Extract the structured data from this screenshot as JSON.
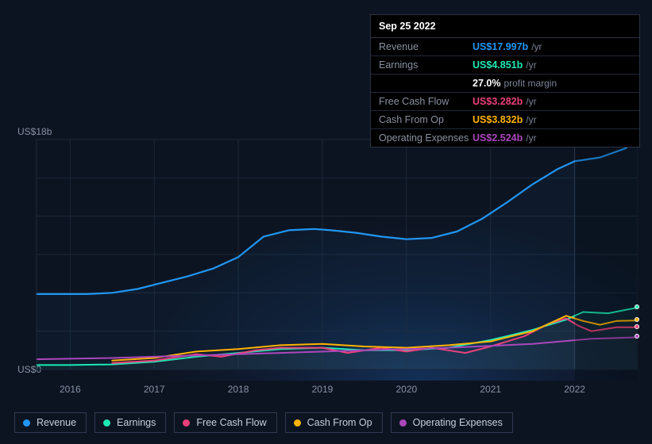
{
  "chart": {
    "type": "line",
    "x_axis": {
      "type": "time",
      "years": [
        "2016",
        "2017",
        "2018",
        "2019",
        "2020",
        "2021",
        "2022"
      ],
      "min": 2015.6,
      "max": 2022.75
    },
    "y_axis": {
      "min": 0,
      "max": 18,
      "ticks": [
        0,
        18
      ],
      "tick_labels": [
        "US$0",
        "US$18b"
      ],
      "label_color": "#8892a6",
      "label_fontsize": 12
    },
    "background_color": "#0d1421",
    "grid_color": "#1b2738",
    "vertical_divider_at": 2022.0,
    "shaded_region": {
      "from": 2022.0,
      "to": 2022.75
    },
    "series": [
      {
        "id": "revenue",
        "name": "Revenue",
        "color": "#2196f3",
        "line_width": 2.2,
        "fill_opacity": 0.05,
        "points": [
          [
            2015.6,
            5.9
          ],
          [
            2015.9,
            5.9
          ],
          [
            2016.2,
            5.9
          ],
          [
            2016.5,
            6.0
          ],
          [
            2016.8,
            6.3
          ],
          [
            2017.1,
            6.8
          ],
          [
            2017.4,
            7.3
          ],
          [
            2017.7,
            7.9
          ],
          [
            2018.0,
            8.8
          ],
          [
            2018.3,
            10.4
          ],
          [
            2018.6,
            10.9
          ],
          [
            2018.9,
            11.0
          ],
          [
            2019.1,
            10.9
          ],
          [
            2019.4,
            10.7
          ],
          [
            2019.7,
            10.4
          ],
          [
            2020.0,
            10.2
          ],
          [
            2020.3,
            10.3
          ],
          [
            2020.6,
            10.8
          ],
          [
            2020.9,
            11.8
          ],
          [
            2021.2,
            13.1
          ],
          [
            2021.5,
            14.5
          ],
          [
            2021.8,
            15.7
          ],
          [
            2022.0,
            16.3
          ],
          [
            2022.3,
            16.6
          ],
          [
            2022.6,
            17.3
          ],
          [
            2022.75,
            18.0
          ]
        ]
      },
      {
        "id": "earnings",
        "name": "Earnings",
        "color": "#1de9b6",
        "line_width": 2,
        "fill_opacity": 0.05,
        "points": [
          [
            2015.6,
            0.35
          ],
          [
            2016.0,
            0.35
          ],
          [
            2016.5,
            0.4
          ],
          [
            2017.0,
            0.6
          ],
          [
            2017.5,
            1.0
          ],
          [
            2018.0,
            1.3
          ],
          [
            2018.5,
            1.6
          ],
          [
            2019.0,
            1.7
          ],
          [
            2019.5,
            1.5
          ],
          [
            2020.0,
            1.5
          ],
          [
            2020.5,
            1.7
          ],
          [
            2021.0,
            2.3
          ],
          [
            2021.5,
            3.1
          ],
          [
            2021.9,
            3.9
          ],
          [
            2022.1,
            4.5
          ],
          [
            2022.4,
            4.4
          ],
          [
            2022.75,
            4.85
          ]
        ]
      },
      {
        "id": "fcf",
        "name": "Free Cash Flow",
        "color": "#ec407a",
        "line_width": 2,
        "fill_opacity": 0.04,
        "points": [
          [
            2016.5,
            0.5
          ],
          [
            2017.0,
            0.7
          ],
          [
            2017.5,
            1.2
          ],
          [
            2017.8,
            1.0
          ],
          [
            2018.2,
            1.5
          ],
          [
            2018.5,
            1.7
          ],
          [
            2019.0,
            1.7
          ],
          [
            2019.3,
            1.3
          ],
          [
            2019.7,
            1.7
          ],
          [
            2020.0,
            1.4
          ],
          [
            2020.3,
            1.7
          ],
          [
            2020.7,
            1.3
          ],
          [
            2021.0,
            1.8
          ],
          [
            2021.4,
            2.6
          ],
          [
            2021.7,
            3.6
          ],
          [
            2021.9,
            4.0
          ],
          [
            2022.05,
            3.4
          ],
          [
            2022.2,
            3.0
          ],
          [
            2022.5,
            3.3
          ],
          [
            2022.75,
            3.3
          ]
        ]
      },
      {
        "id": "cfo",
        "name": "Cash From Op",
        "color": "#ffb300",
        "line_width": 2,
        "fill_opacity": 0.0,
        "points": [
          [
            2016.5,
            0.7
          ],
          [
            2017.0,
            0.9
          ],
          [
            2017.5,
            1.4
          ],
          [
            2018.0,
            1.6
          ],
          [
            2018.5,
            1.9
          ],
          [
            2019.0,
            2.0
          ],
          [
            2019.5,
            1.8
          ],
          [
            2020.0,
            1.7
          ],
          [
            2020.5,
            1.9
          ],
          [
            2021.0,
            2.2
          ],
          [
            2021.5,
            3.0
          ],
          [
            2021.9,
            4.2
          ],
          [
            2022.1,
            3.8
          ],
          [
            2022.3,
            3.5
          ],
          [
            2022.5,
            3.8
          ],
          [
            2022.75,
            3.83
          ]
        ]
      },
      {
        "id": "opex",
        "name": "Operating Expenses",
        "color": "#ab47bc",
        "line_width": 2,
        "fill_opacity": 0.0,
        "points": [
          [
            2015.6,
            0.8
          ],
          [
            2016.5,
            0.9
          ],
          [
            2017.5,
            1.1
          ],
          [
            2018.5,
            1.3
          ],
          [
            2019.5,
            1.5
          ],
          [
            2020.5,
            1.7
          ],
          [
            2021.5,
            2.0
          ],
          [
            2022.2,
            2.4
          ],
          [
            2022.75,
            2.52
          ]
        ]
      }
    ],
    "current_markers": [
      {
        "x": 2022.75,
        "y": 18.0,
        "color": "#2196f3"
      },
      {
        "x": 2022.75,
        "y": 4.85,
        "color": "#1de9b6"
      },
      {
        "x": 2022.75,
        "y": 3.83,
        "color": "#ffb300"
      },
      {
        "x": 2022.75,
        "y": 3.3,
        "color": "#ec407a"
      },
      {
        "x": 2022.75,
        "y": 2.52,
        "color": "#ab47bc"
      }
    ]
  },
  "tooltip": {
    "date": "Sep 25 2022",
    "rows": [
      {
        "label": "Revenue",
        "value": "US$17.997b",
        "unit": "/yr",
        "color": "#2196f3"
      },
      {
        "label": "Earnings",
        "value": "US$4.851b",
        "unit": "/yr",
        "color": "#1de9b6"
      },
      {
        "label": "",
        "value": "27.0%",
        "unit": "profit margin",
        "color": "#ffffff"
      },
      {
        "label": "Free Cash Flow",
        "value": "US$3.282b",
        "unit": "/yr",
        "color": "#ec407a"
      },
      {
        "label": "Cash From Op",
        "value": "US$3.832b",
        "unit": "/yr",
        "color": "#ffb300"
      },
      {
        "label": "Operating Expenses",
        "value": "US$2.524b",
        "unit": "/yr",
        "color": "#ab47bc"
      }
    ]
  },
  "legend": {
    "items": [
      {
        "id": "revenue",
        "label": "Revenue",
        "color": "#2196f3"
      },
      {
        "id": "earnings",
        "label": "Earnings",
        "color": "#1de9b6"
      },
      {
        "id": "fcf",
        "label": "Free Cash Flow",
        "color": "#ec407a"
      },
      {
        "id": "cfo",
        "label": "Cash From Op",
        "color": "#ffb300"
      },
      {
        "id": "opex",
        "label": "Operating Expenses",
        "color": "#ab47bc"
      }
    ]
  }
}
